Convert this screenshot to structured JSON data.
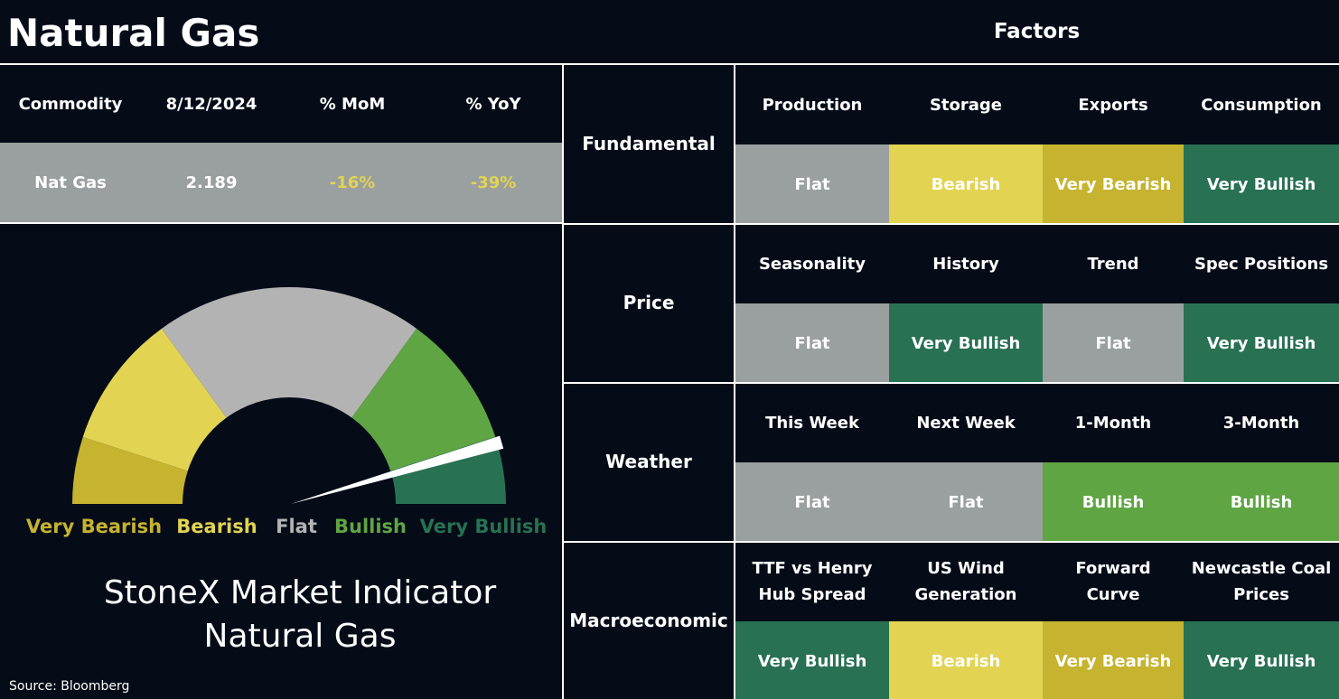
{
  "header": {
    "title": "Natural Gas",
    "factors_title": "Factors"
  },
  "table": {
    "columns": [
      "Commodity",
      "8/12/2024",
      "% MoM",
      "% YoY"
    ],
    "row": [
      {
        "text": "Nat Gas",
        "color": "#ffffff"
      },
      {
        "text": "2.189",
        "color": "#ffffff"
      },
      {
        "text": "-16%",
        "color": "#e2d352"
      },
      {
        "text": "-39%",
        "color": "#e2d352"
      }
    ]
  },
  "factors": [
    {
      "group": "Fundamental",
      "items": [
        {
          "name": "Production",
          "signal": "Flat",
          "color": "#9aa09f"
        },
        {
          "name": "Storage",
          "signal": "Bearish",
          "color": "#e2d352"
        },
        {
          "name": "Exports",
          "signal": "Very Bearish",
          "color": "#c6b330"
        },
        {
          "name": "Consumption",
          "signal": "Very Bullish",
          "color": "#287152"
        }
      ]
    },
    {
      "group": "Price",
      "items": [
        {
          "name": "Seasonality",
          "signal": "Flat",
          "color": "#9aa09f"
        },
        {
          "name": "History",
          "signal": "Very Bullish",
          "color": "#287152"
        },
        {
          "name": "Trend",
          "signal": "Flat",
          "color": "#9aa09f"
        },
        {
          "name": "Spec Positions",
          "signal": "Very Bullish",
          "color": "#287152"
        }
      ]
    },
    {
      "group": "Weather",
      "items": [
        {
          "name": "This Week",
          "signal": "Flat",
          "color": "#9aa09f"
        },
        {
          "name": "Next Week",
          "signal": "Flat",
          "color": "#9aa09f"
        },
        {
          "name": "1-Month",
          "signal": "Bullish",
          "color": "#5fa544"
        },
        {
          "name": "3-Month",
          "signal": "Bullish",
          "color": "#5fa544"
        }
      ]
    },
    {
      "group": "Macroeconomic",
      "items": [
        {
          "name": "TTF vs Henry Hub Spread",
          "signal": "Very Bullish",
          "color": "#287152"
        },
        {
          "name": "US Wind Generation",
          "signal": "Bearish",
          "color": "#e2d352"
        },
        {
          "name": "Forward Curve",
          "signal": "Very Bearish",
          "color": "#c6b330"
        },
        {
          "name": "Newcastle Coal Prices",
          "signal": "Very Bullish",
          "color": "#287152"
        }
      ]
    }
  ],
  "gauge": {
    "segments": [
      {
        "label": "Very Bearish",
        "size": 1,
        "color": "#c6b330"
      },
      {
        "label": "Bearish",
        "size": 2,
        "color": "#e2d352"
      },
      {
        "label": "Flat",
        "size": 4,
        "color": "#b3b3b3"
      },
      {
        "label": "Bullish",
        "size": 2,
        "color": "#5fa544"
      },
      {
        "label": "Very Bullish",
        "size": 1,
        "color": "#287152"
      }
    ],
    "scale": [
      0,
      10
    ],
    "pointer": 9.1,
    "caption": [
      "StoneX Market Indicator",
      "Natural Gas"
    ]
  },
  "source": "Source: Bloomberg"
}
